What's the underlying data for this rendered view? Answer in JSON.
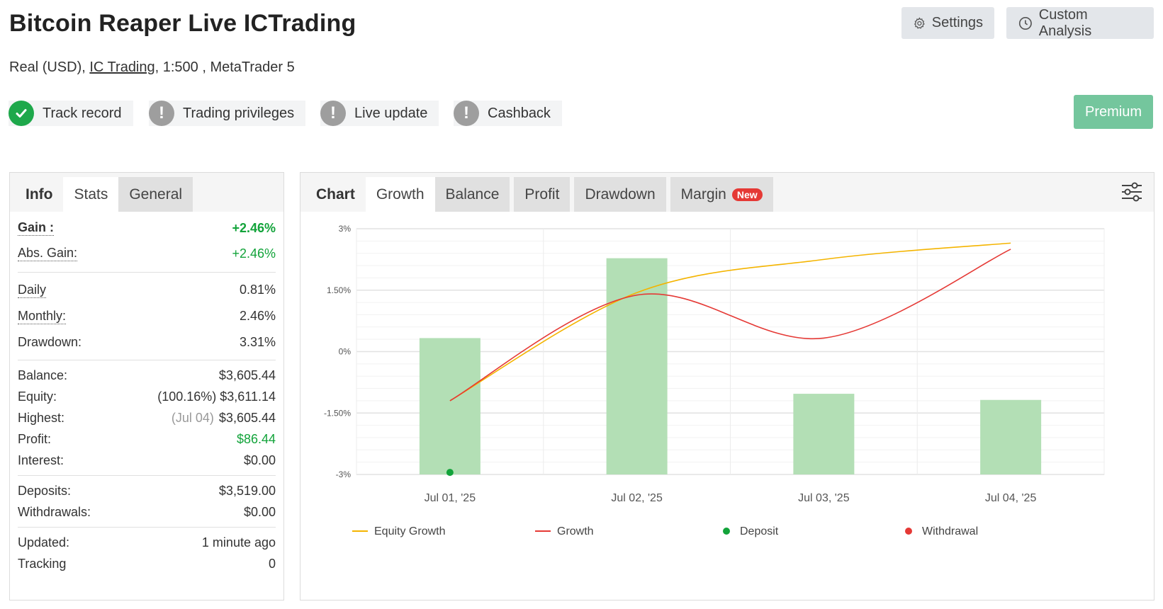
{
  "page": {
    "title": "Bitcoin Reaper Live ICTrading",
    "subtitle_pre": "Real (USD), ",
    "broker": "IC Trading",
    "subtitle_post": ", 1:500 , MetaTrader 5"
  },
  "toolbar": {
    "settings_label": "Settings",
    "analysis_label": "Custom Analysis",
    "premium_label": "Premium"
  },
  "badges": [
    {
      "label": "Track record",
      "status": "ok",
      "icon": "check-icon"
    },
    {
      "label": "Trading privileges",
      "status": "warn",
      "icon": "exclamation-icon"
    },
    {
      "label": "Live update",
      "status": "warn",
      "icon": "exclamation-icon"
    },
    {
      "label": "Cashback",
      "status": "warn",
      "icon": "exclamation-icon"
    }
  ],
  "left_tabs": {
    "info": "Info",
    "stats": "Stats",
    "general": "General"
  },
  "stats": {
    "gain": {
      "label": "Gain :",
      "value": "+2.46%"
    },
    "abs_gain": {
      "label": "Abs. Gain:",
      "value": "+2.46%"
    },
    "daily": {
      "label": "Daily",
      "value": "0.81%"
    },
    "monthly": {
      "label": "Monthly:",
      "value": "2.46%"
    },
    "drawdown": {
      "label": "Drawdown:",
      "value": "3.31%"
    },
    "balance": {
      "label": "Balance:",
      "value": "$3,605.44"
    },
    "equity": {
      "label": "Equity:",
      "value": "(100.16%) $3,611.14"
    },
    "highest": {
      "label": "Highest:",
      "note": "(Jul 04)",
      "value": "$3,605.44"
    },
    "profit": {
      "label": "Profit:",
      "value": "$86.44"
    },
    "interest": {
      "label": "Interest:",
      "value": "$0.00"
    },
    "deposits": {
      "label": "Deposits:",
      "value": "$3,519.00"
    },
    "withdrawals": {
      "label": "Withdrawals:",
      "value": "$0.00"
    },
    "updated": {
      "label": "Updated:",
      "value": "1 minute ago"
    },
    "tracking": {
      "label": "Tracking",
      "value": "0"
    }
  },
  "chart_tabs": {
    "chart": "Chart",
    "growth": "Growth",
    "balance": "Balance",
    "profit": "Profit",
    "drawdown": "Drawdown",
    "margin": "Margin",
    "new_badge": "New"
  },
  "colors": {
    "accent_green": "#12a33a",
    "bar": "#b3dfb5",
    "equity_line": "#f4b400",
    "growth_line": "#e53935",
    "deposit": "#12a33a",
    "withdrawal": "#e53935",
    "premium": "#74c69d"
  },
  "chart_data": {
    "type": "bar",
    "categories": [
      "Jul 01, '25",
      "Jul 02, '25",
      "Jul 03, '25",
      "Jul 04, '25"
    ],
    "ylim": [
      -3,
      3
    ],
    "yticks": [
      "3%",
      "1.50%",
      "0%",
      "-1.50%",
      "-3%"
    ],
    "grid": true,
    "legend_position": "bottom",
    "series": [
      {
        "name": "",
        "kind": "bar",
        "values": [
          0.33,
          2.28,
          -1.03,
          -1.18
        ]
      },
      {
        "name": "Equity Growth",
        "kind": "line",
        "values": [
          -1.2,
          1.44,
          2.25,
          2.65
        ]
      },
      {
        "name": "Growth",
        "kind": "line",
        "values": [
          -1.2,
          1.38,
          0.33,
          2.5
        ]
      },
      {
        "name": "Deposit",
        "kind": "point",
        "values": [
          -2.95,
          null,
          null,
          null
        ]
      },
      {
        "name": "Withdrawal",
        "kind": "point",
        "values": [
          null,
          null,
          null,
          null
        ]
      }
    ]
  }
}
